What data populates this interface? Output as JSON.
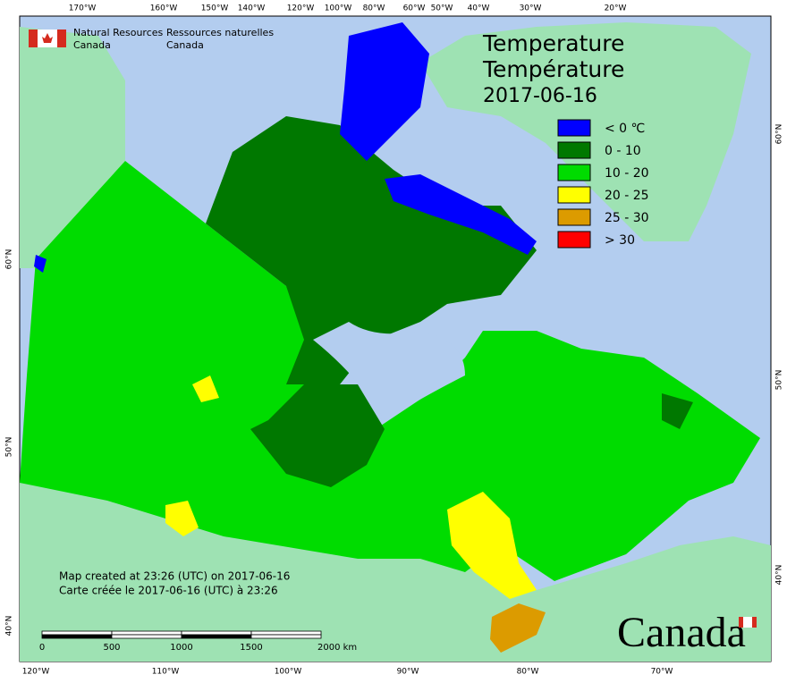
{
  "header": {
    "org_en": [
      "Natural Resources",
      "Canada"
    ],
    "org_fr": [
      "Ressources naturelles",
      "Canada"
    ]
  },
  "title": [
    "Temperature",
    "Température",
    "2017-06-16"
  ],
  "legend": [
    {
      "label": "< 0 ℃",
      "color": "#0000ff"
    },
    {
      "label": "0 - 10",
      "color": "#007800"
    },
    {
      "label": "10 - 20",
      "color": "#00dc00"
    },
    {
      "label": "20 - 25",
      "color": "#ffff00"
    },
    {
      "label": "25 - 30",
      "color": "#dc9b00"
    },
    {
      "label": "> 30",
      "color": "#ff0000"
    }
  ],
  "top_labels": [
    "170°W",
    "160°W",
    "150°W",
    "140°W",
    "120°W",
    "100°W",
    "80°W",
    "60°W",
    "50°W",
    "40°W",
    "30°W",
    "20°W"
  ],
  "bottom_labels": [
    "120°W",
    "110°W",
    "100°W",
    "90°W",
    "80°W",
    "70°W"
  ],
  "left_labels": [
    "60°N",
    "50°N",
    "40°N"
  ],
  "right_labels": [
    "60°N",
    "50°N",
    "40°N"
  ],
  "notes": [
    "Map created at 23:26 (UTC) on 2017-06-16",
    "Carte créée le 2017-06-16 (UTC) à 23:26"
  ],
  "scale_bar": [
    "0",
    "500",
    "1000",
    "1500",
    "2000 km"
  ],
  "wordmark": "Canada"
}
